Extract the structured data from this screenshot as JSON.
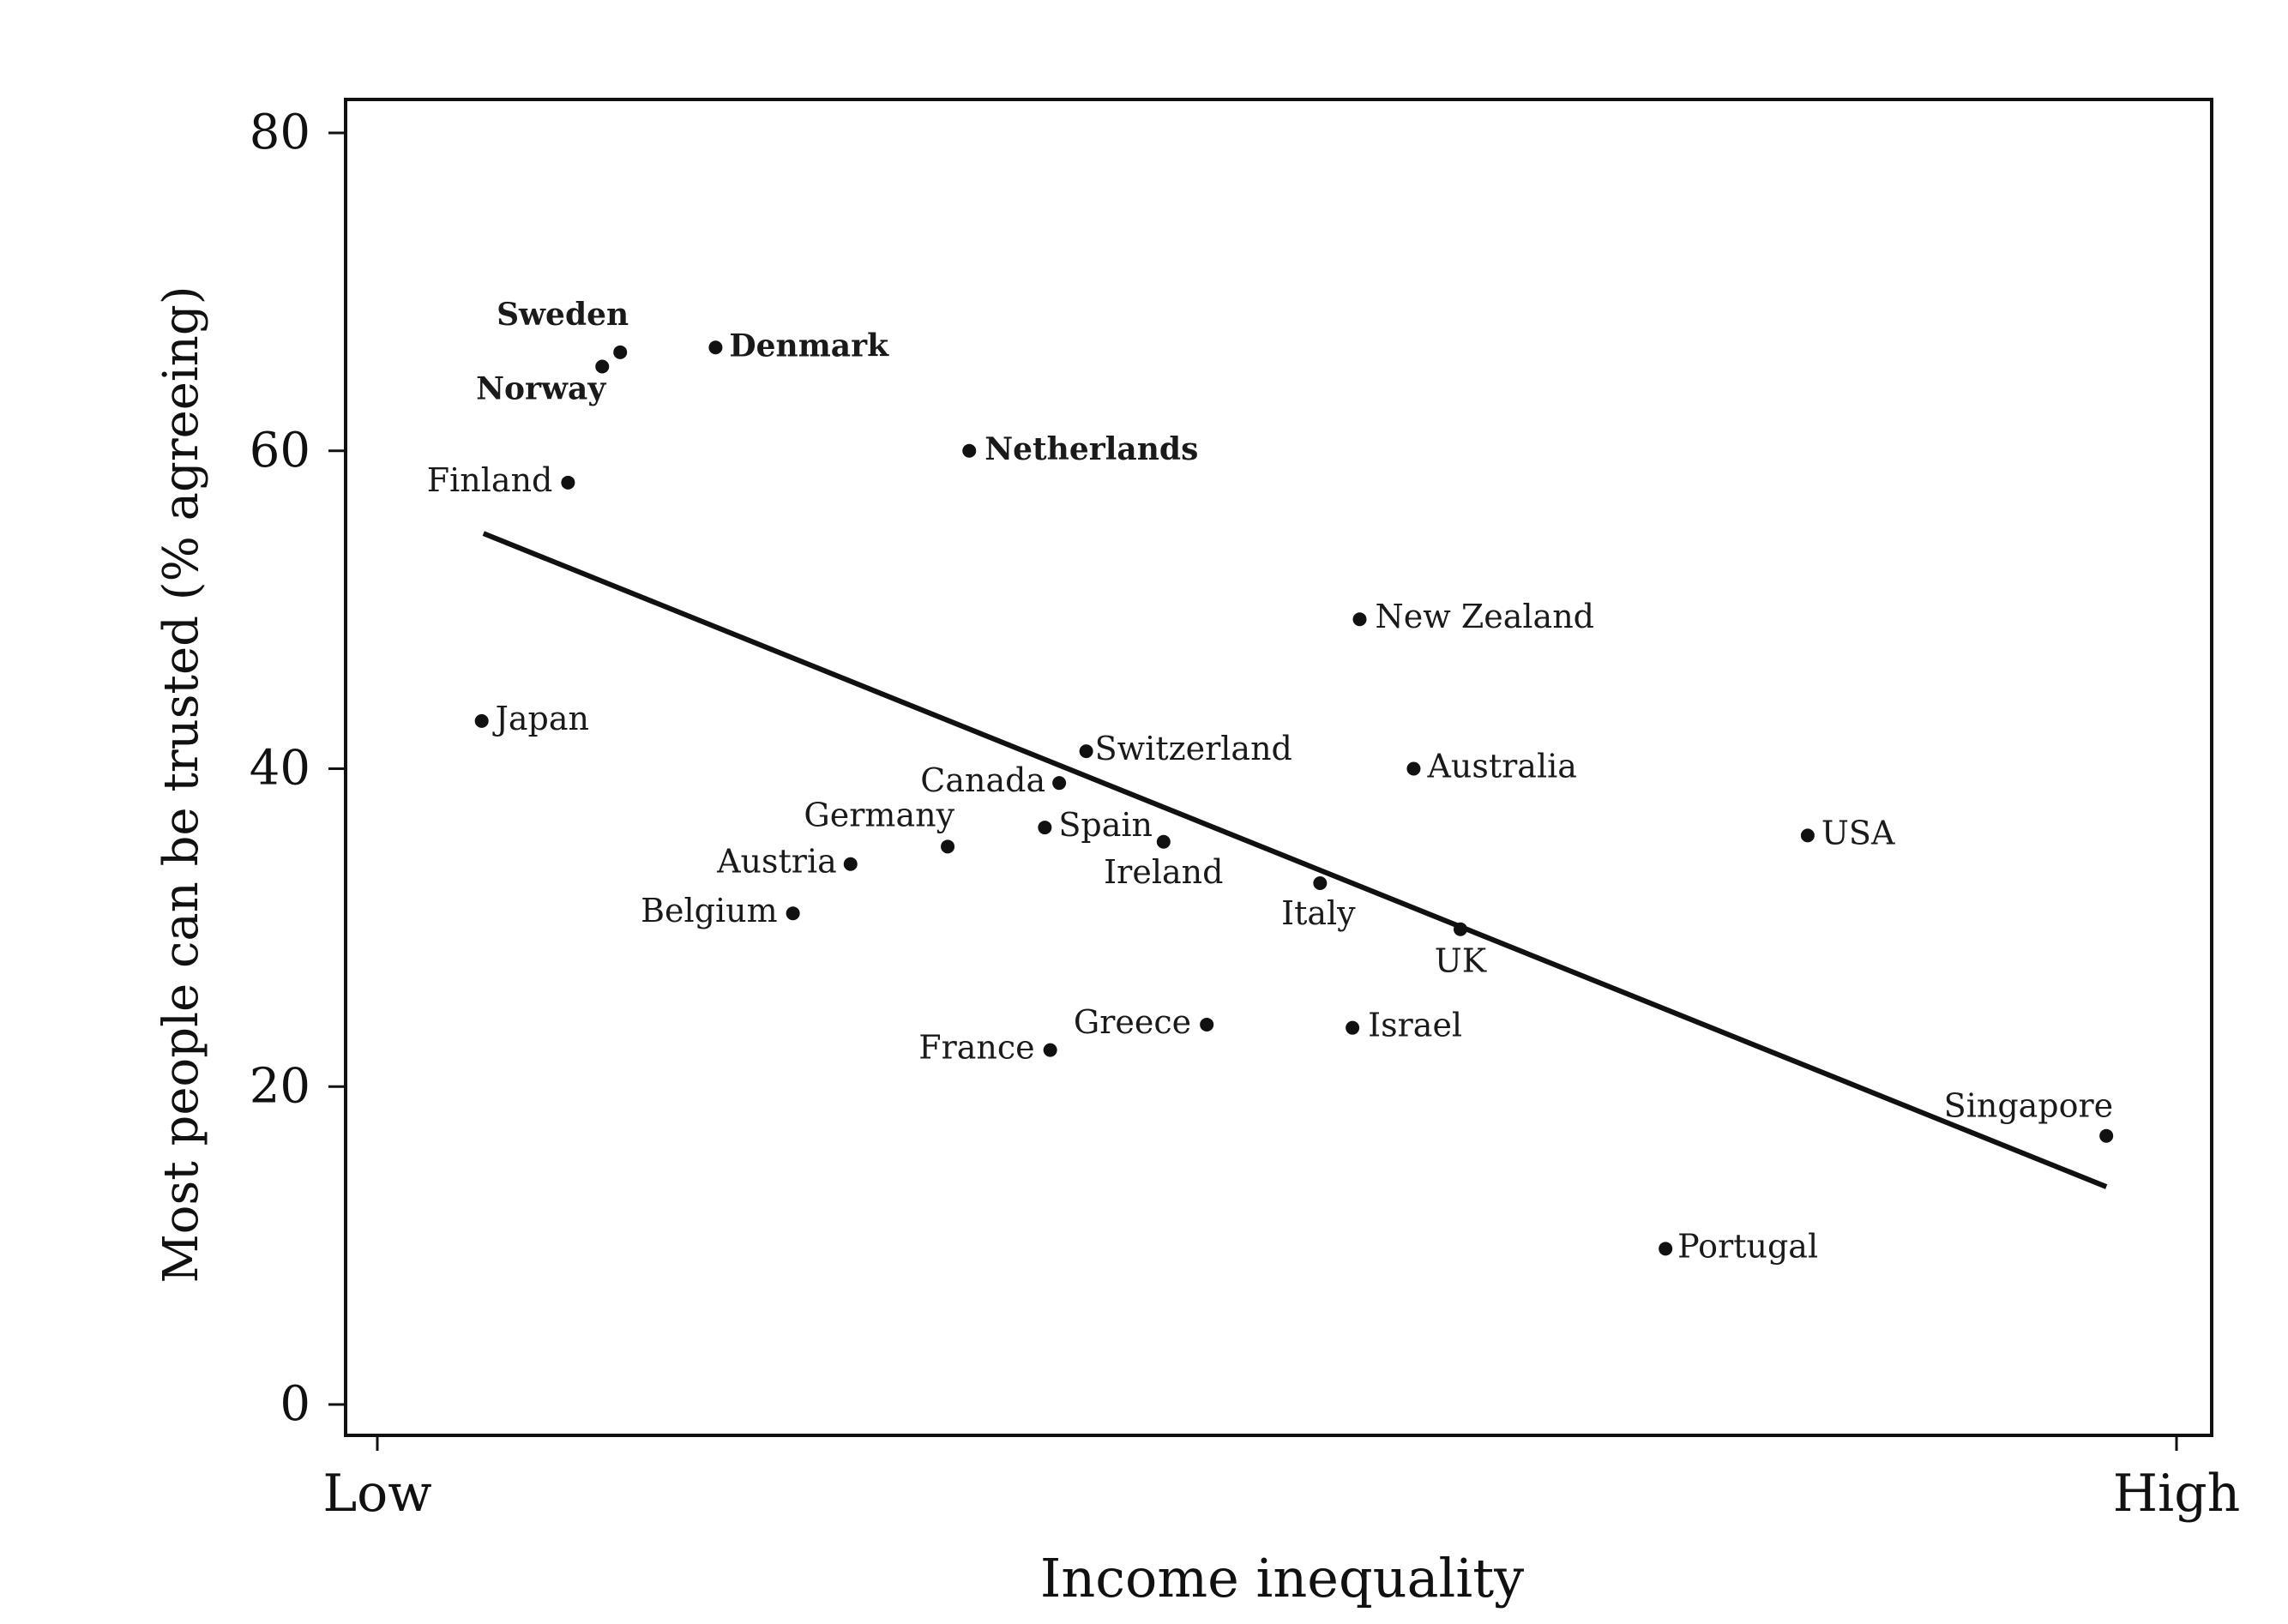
{
  "chart_data": {
    "type": "scatter",
    "title": "",
    "xlabel": "Income inequality",
    "ylabel": "Most people can be trusted (% agreeing)",
    "x_ticks": [
      "Low",
      "High"
    ],
    "xlim": [
      0,
      100
    ],
    "ylim": [
      0,
      80
    ],
    "y_ticks": [
      "0",
      "20",
      "40",
      "60",
      "80"
    ],
    "grid": false,
    "legend": "none",
    "points": [
      {
        "label": "Sweden",
        "x": 13.5,
        "y": 66.2,
        "emphasis": true
      },
      {
        "label": "Norway",
        "x": 12.5,
        "y": 65.3,
        "emphasis": true
      },
      {
        "label": "Denmark",
        "x": 18.8,
        "y": 66.5,
        "emphasis": true
      },
      {
        "label": "Netherlands",
        "x": 32.9,
        "y": 60.0,
        "emphasis": true
      },
      {
        "label": "Finland",
        "x": 10.6,
        "y": 58.0,
        "emphasis": false
      },
      {
        "label": "New Zealand",
        "x": 54.6,
        "y": 49.4,
        "emphasis": false
      },
      {
        "label": "Japan",
        "x": 5.8,
        "y": 43.0,
        "emphasis": false
      },
      {
        "label": "Switzerland",
        "x": 39.4,
        "y": 41.1,
        "emphasis": false
      },
      {
        "label": "Australia",
        "x": 57.6,
        "y": 40.0,
        "emphasis": false
      },
      {
        "label": "Canada",
        "x": 37.9,
        "y": 39.1,
        "emphasis": false
      },
      {
        "label": "Germany",
        "x": 31.7,
        "y": 35.1,
        "emphasis": false
      },
      {
        "label": "Spain",
        "x": 37.1,
        "y": 36.3,
        "emphasis": false
      },
      {
        "label": "USA",
        "x": 79.5,
        "y": 35.8,
        "emphasis": false
      },
      {
        "label": "Ireland",
        "x": 43.7,
        "y": 35.4,
        "emphasis": false
      },
      {
        "label": "Austria",
        "x": 26.3,
        "y": 34.0,
        "emphasis": false
      },
      {
        "label": "Belgium",
        "x": 23.1,
        "y": 30.9,
        "emphasis": false
      },
      {
        "label": "Italy",
        "x": 52.4,
        "y": 32.8,
        "emphasis": false
      },
      {
        "label": "UK",
        "x": 60.2,
        "y": 29.9,
        "emphasis": false
      },
      {
        "label": "Greece",
        "x": 46.1,
        "y": 23.9,
        "emphasis": false
      },
      {
        "label": "Israel",
        "x": 54.2,
        "y": 23.7,
        "emphasis": false
      },
      {
        "label": "France",
        "x": 37.4,
        "y": 22.3,
        "emphasis": false
      },
      {
        "label": "Singapore",
        "x": 96.1,
        "y": 16.9,
        "emphasis": false
      },
      {
        "label": "Portugal",
        "x": 71.6,
        "y": 9.8,
        "emphasis": false
      }
    ],
    "trend_line": {
      "x": [
        5.9,
        96.1
      ],
      "y": [
        54.8,
        13.7
      ]
    }
  }
}
